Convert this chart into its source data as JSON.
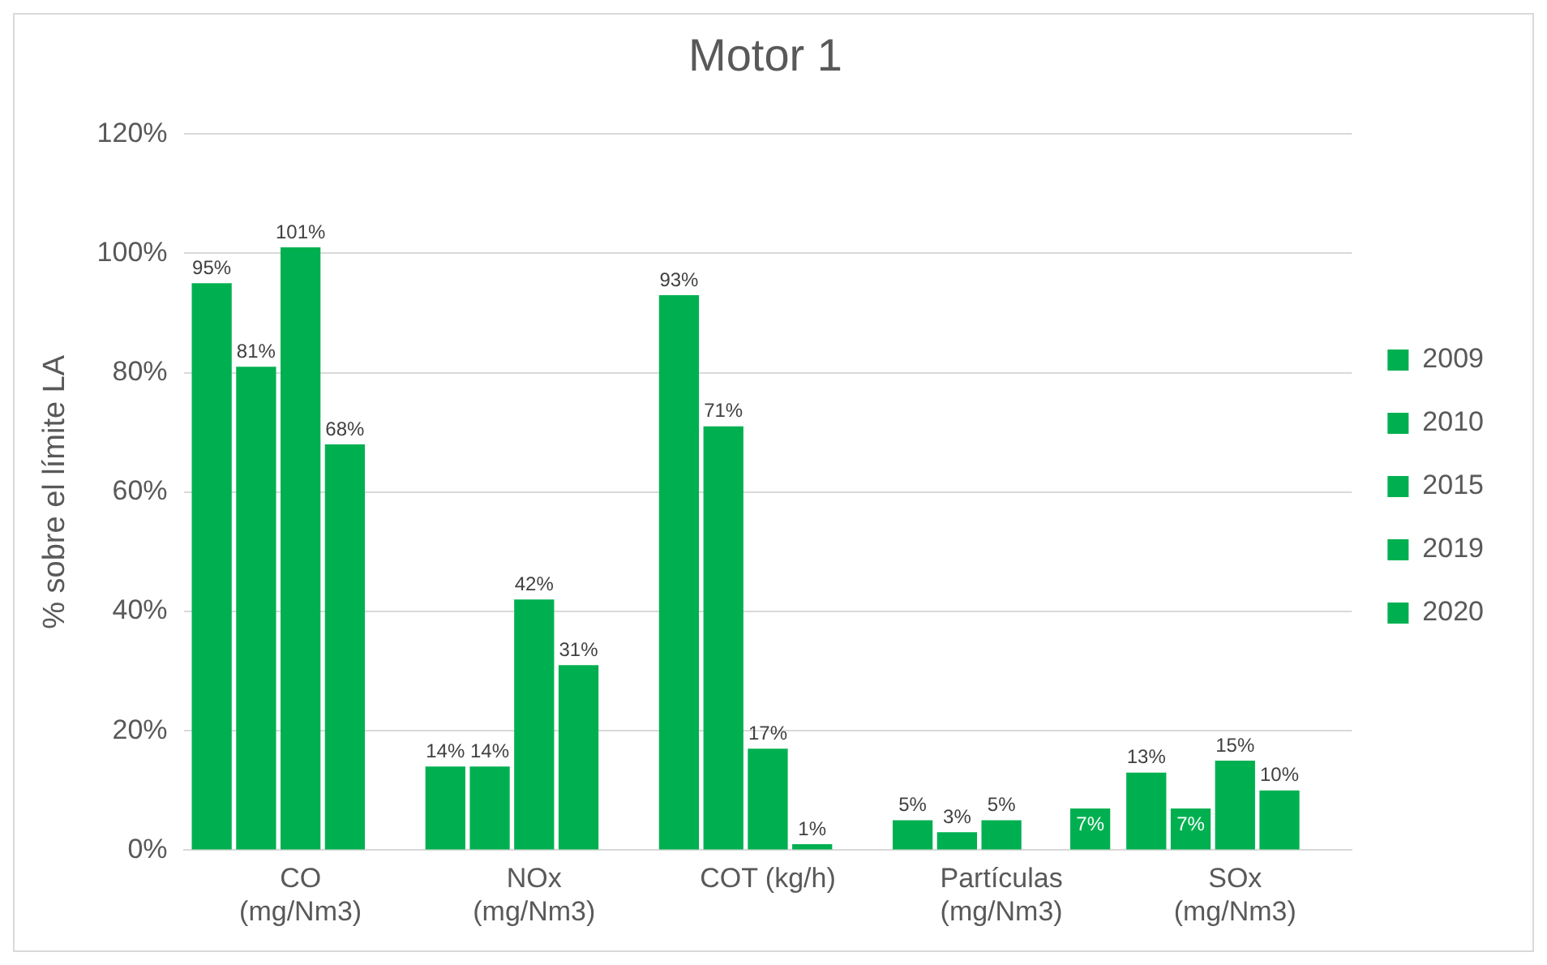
{
  "chart_data": {
    "type": "bar",
    "title": "Motor 1",
    "ylabel": "% sobre el límite LA",
    "categories": [
      "CO\n(mg/Nm3)",
      "NOx\n(mg/Nm3)",
      "COT (kg/h)",
      "Partículas\n(mg/Nm3)",
      "SOx\n(mg/Nm3)"
    ],
    "series": [
      {
        "name": "2009",
        "color": "#00b050",
        "values": [
          95,
          14,
          93,
          5,
          13
        ],
        "value_labels": [
          "95%",
          "14%",
          "93%",
          "5%",
          "13%"
        ]
      },
      {
        "name": "2010",
        "color": "#00b050",
        "values": [
          81,
          14,
          71,
          3,
          7
        ],
        "value_labels": [
          "81%",
          "14%",
          "71%",
          "3%",
          "7%"
        ]
      },
      {
        "name": "2015",
        "color": "#00b050",
        "values": [
          101,
          42,
          17,
          5,
          15
        ],
        "value_labels": [
          "101%",
          "42%",
          "17%",
          "5%",
          "15%"
        ]
      },
      {
        "name": "2019",
        "color": "#00b050",
        "values": [
          68,
          31,
          1,
          null,
          10
        ],
        "value_labels": [
          "68%",
          "31%",
          "1%",
          null,
          "10%"
        ]
      },
      {
        "name": "2020",
        "color": "#00b050",
        "values": [
          null,
          null,
          null,
          7,
          null
        ],
        "value_labels": [
          null,
          null,
          null,
          "7%",
          null
        ]
      }
    ],
    "ylim": [
      0,
      120
    ],
    "yticks": [
      {
        "value": 0,
        "label": "0%"
      },
      {
        "value": 20,
        "label": "20%"
      },
      {
        "value": 40,
        "label": "40%"
      },
      {
        "value": 60,
        "label": "60%"
      },
      {
        "value": 80,
        "label": "80%"
      },
      {
        "value": 100,
        "label": "100%"
      },
      {
        "value": 120,
        "label": "120%"
      }
    ],
    "grid": "y",
    "legend": "right"
  }
}
